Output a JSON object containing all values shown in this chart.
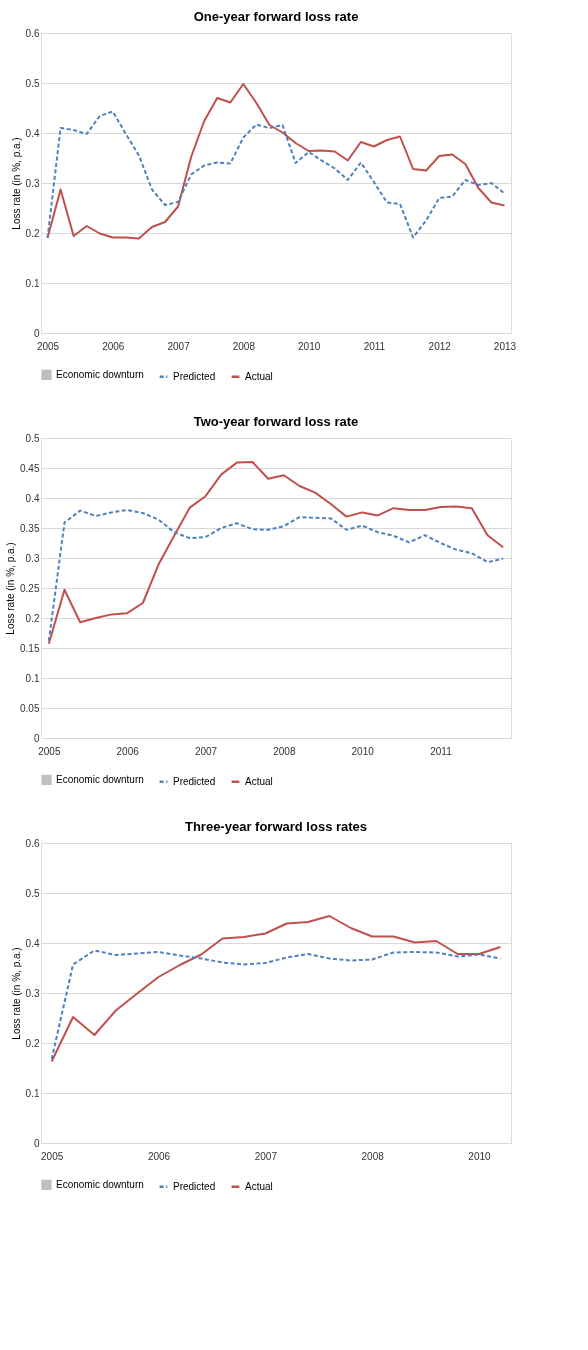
{
  "chart_data": [
    {
      "type": "line",
      "title": "One-year forward loss rate",
      "ylabel": "Loss rate (in %, p.a.)",
      "categories": [
        "2005",
        null,
        null,
        null,
        null,
        "2006",
        null,
        null,
        null,
        null,
        "2007",
        null,
        null,
        null,
        null,
        "2008",
        null,
        null,
        null,
        null,
        "2010",
        null,
        null,
        null,
        null,
        "2011",
        null,
        null,
        null,
        null,
        "2012",
        null,
        null,
        null,
        null,
        "2013"
      ],
      "ylim": [
        0,
        0.6
      ],
      "yticks": [
        0,
        0.1,
        0.2,
        0.3,
        0.4,
        0.5,
        0.6
      ],
      "grid": "y",
      "legend": "bottom",
      "series": [
        {
          "name": "Economic downturn",
          "type": "bar",
          "color": "#bfbfbf",
          "values": [
            null,
            null,
            null,
            null,
            null,
            null,
            null,
            null,
            null,
            null,
            null,
            null,
            null,
            null,
            null,
            null,
            null,
            null,
            null,
            null,
            null,
            null,
            null,
            null,
            null,
            null,
            null,
            null,
            null,
            null,
            null,
            null,
            null,
            null,
            null,
            null
          ]
        },
        {
          "name": "Predicted",
          "color": "#4f81bd",
          "line_style": "dashed",
          "values": [
            0.19,
            0.41,
            0.406,
            0.398,
            0.434,
            0.443,
            0.398,
            0.355,
            0.287,
            0.256,
            0.262,
            0.317,
            0.335,
            0.341,
            0.339,
            0.391,
            0.417,
            0.41,
            0.416,
            0.34,
            0.362,
            0.345,
            0.329,
            0.306,
            0.341,
            0.302,
            0.261,
            0.258,
            0.191,
            0.225,
            0.27,
            0.273,
            0.306,
            0.296,
            0.3,
            0.279
          ]
        },
        {
          "name": "Actual",
          "color": "#c0504d",
          "line_style": "solid",
          "values": [
            0.19,
            0.287,
            0.194,
            0.214,
            0.199,
            0.191,
            0.191,
            0.189,
            0.212,
            0.222,
            0.253,
            0.352,
            0.424,
            0.47,
            0.461,
            0.498,
            0.46,
            0.416,
            0.401,
            0.38,
            0.364,
            0.365,
            0.363,
            0.345,
            0.382,
            0.373,
            0.386,
            0.393,
            0.328,
            0.325,
            0.354,
            0.357,
            0.338,
            0.29,
            0.261,
            0.255
          ]
        }
      ]
    },
    {
      "type": "line",
      "title": "Two-year forward loss rate",
      "ylabel": "Loss rate (in %, p.a.)",
      "categories": [
        "2005",
        null,
        null,
        null,
        null,
        "2006",
        null,
        null,
        null,
        null,
        "2007",
        null,
        null,
        null,
        null,
        "2008",
        null,
        null,
        null,
        null,
        "2010",
        null,
        null,
        null,
        null,
        "2011",
        null,
        null,
        null,
        null
      ],
      "ylim": [
        0,
        0.5
      ],
      "yticks": [
        0,
        0.05,
        0.1,
        0.15,
        0.2,
        0.25,
        0.3,
        0.35,
        0.4,
        0.45,
        0.5
      ],
      "grid": "y",
      "legend": "bottom",
      "series": [
        {
          "name": "Economic downturn",
          "type": "bar",
          "color": "#bfbfbf",
          "values": [
            null,
            null,
            null,
            null,
            null,
            null,
            null,
            null,
            null,
            null,
            null,
            null,
            null,
            null,
            null,
            null,
            null,
            null,
            null,
            null,
            null,
            null,
            null,
            null,
            null,
            null,
            null,
            null,
            null,
            null
          ]
        },
        {
          "name": "Predicted",
          "color": "#4f81bd",
          "line_style": "dashed",
          "values": [
            0.162,
            0.359,
            0.379,
            0.37,
            0.376,
            0.38,
            0.375,
            0.364,
            0.343,
            0.333,
            0.335,
            0.35,
            0.358,
            0.348,
            0.347,
            0.353,
            0.368,
            0.367,
            0.366,
            0.347,
            0.354,
            0.343,
            0.337,
            0.326,
            0.338,
            0.325,
            0.314,
            0.308,
            0.293,
            0.299
          ]
        },
        {
          "name": "Actual",
          "color": "#c0504d",
          "line_style": "solid",
          "values": [
            0.157,
            0.247,
            0.193,
            0.2,
            0.206,
            0.208,
            0.225,
            0.289,
            0.337,
            0.384,
            0.403,
            0.439,
            0.459,
            0.46,
            0.432,
            0.438,
            0.42,
            0.409,
            0.39,
            0.369,
            0.376,
            0.371,
            0.383,
            0.38,
            0.38,
            0.385,
            0.386,
            0.383,
            0.338,
            0.318
          ]
        }
      ]
    },
    {
      "type": "line",
      "title": "Three-year forward loss rates",
      "ylabel": "Loss rate (in %, p.a.)",
      "categories": [
        "2005",
        null,
        null,
        null,
        null,
        "2006",
        null,
        null,
        null,
        null,
        "2007",
        null,
        null,
        null,
        null,
        "2008",
        null,
        null,
        null,
        null,
        "2010",
        null
      ],
      "ylim": [
        0,
        0.6
      ],
      "yticks": [
        0,
        0.1,
        0.2,
        0.3,
        0.4,
        0.5,
        0.6
      ],
      "grid": "y",
      "legend": "bottom",
      "series": [
        {
          "name": "Economic downturn",
          "type": "bar",
          "color": "#bfbfbf",
          "values": [
            null,
            null,
            null,
            null,
            null,
            null,
            null,
            null,
            null,
            null,
            null,
            null,
            null,
            null,
            null,
            null,
            null,
            null,
            null,
            null,
            null,
            null
          ]
        },
        {
          "name": "Predicted",
          "color": "#4f81bd",
          "line_style": "dashed",
          "values": [
            0.168,
            0.357,
            0.385,
            0.376,
            0.379,
            0.382,
            0.375,
            0.369,
            0.361,
            0.357,
            0.36,
            0.371,
            0.378,
            0.369,
            0.365,
            0.367,
            0.381,
            0.382,
            0.381,
            0.373,
            0.377,
            0.369
          ]
        },
        {
          "name": "Actual",
          "color": "#c0504d",
          "line_style": "solid",
          "values": [
            0.163,
            0.252,
            0.216,
            0.265,
            0.299,
            0.332,
            0.356,
            0.377,
            0.409,
            0.412,
            0.419,
            0.439,
            0.442,
            0.454,
            0.43,
            0.413,
            0.413,
            0.401,
            0.404,
            0.378,
            0.378,
            0.392
          ]
        }
      ]
    }
  ]
}
